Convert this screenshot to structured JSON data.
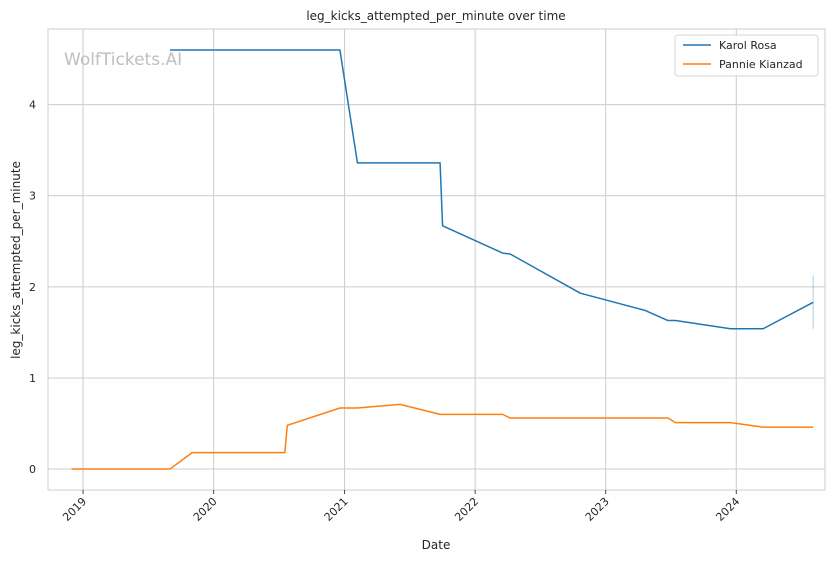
{
  "chart_data": {
    "type": "line",
    "title": "leg_kicks_attempted_per_minute over time",
    "xlabel": "Date",
    "ylabel": "leg_kicks_attempted_per_minute",
    "watermark": "WolfTickets.AI",
    "xlim": [
      "2018-09-25",
      "2024-09-05"
    ],
    "ylim": [
      -0.23,
      4.83
    ],
    "x_ticks": [
      "2019-01-01",
      "2020-01-01",
      "2021-01-01",
      "2022-01-01",
      "2023-01-01",
      "2024-01-01"
    ],
    "x_tick_labels": [
      "2019",
      "2020",
      "2021",
      "2022",
      "2023",
      "2024"
    ],
    "y_ticks": [
      0,
      1,
      2,
      3,
      4
    ],
    "y_tick_labels": [
      "0",
      "1",
      "2",
      "3",
      "4"
    ],
    "grid": true,
    "legend_position": "top-right",
    "series": [
      {
        "name": "Karol Rosa",
        "color": "#1f77b4",
        "points": [
          [
            "2019-09-01",
            4.6
          ],
          [
            "2020-12-19",
            4.6
          ],
          [
            "2021-02-06",
            3.36
          ],
          [
            "2021-09-25",
            3.36
          ],
          [
            "2021-10-02",
            2.67
          ],
          [
            "2022-03-19",
            2.37
          ],
          [
            "2022-04-09",
            2.36
          ],
          [
            "2022-10-22",
            1.93
          ],
          [
            "2023-04-22",
            1.74
          ],
          [
            "2023-06-24",
            1.63
          ],
          [
            "2023-07-15",
            1.63
          ],
          [
            "2023-12-16",
            1.54
          ],
          [
            "2024-03-16",
            1.54
          ],
          [
            "2024-08-03",
            1.83
          ]
        ]
      },
      {
        "name": "Pannie Kianzad",
        "color": "#ff7f0e",
        "points": [
          [
            "2018-11-30",
            0.0
          ],
          [
            "2019-09-01",
            0.0
          ],
          [
            "2019-11-02",
            0.18
          ],
          [
            "2020-07-18",
            0.18
          ],
          [
            "2020-07-25",
            0.48
          ],
          [
            "2020-12-19",
            0.67
          ],
          [
            "2021-02-06",
            0.67
          ],
          [
            "2021-06-05",
            0.71
          ],
          [
            "2021-09-25",
            0.6
          ],
          [
            "2022-03-19",
            0.6
          ],
          [
            "2022-04-09",
            0.56
          ],
          [
            "2023-06-24",
            0.56
          ],
          [
            "2023-07-15",
            0.51
          ],
          [
            "2023-12-16",
            0.51
          ],
          [
            "2024-03-16",
            0.46
          ],
          [
            "2024-08-03",
            0.46
          ]
        ]
      }
    ],
    "error_bar": {
      "x": "2024-08-03",
      "low": 1.54,
      "high": 2.12,
      "color": "#1f77b4"
    }
  }
}
